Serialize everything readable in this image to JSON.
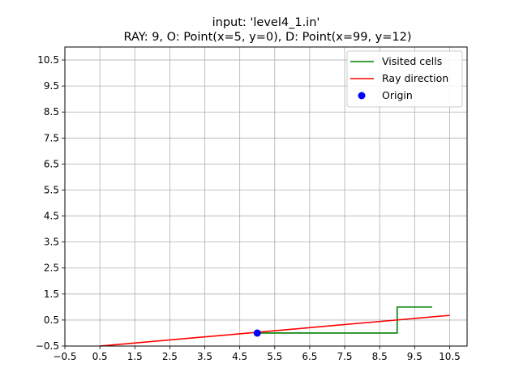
{
  "chart_data": {
    "type": "line",
    "title_lines": [
      "input: 'level4_1.in'",
      "RAY: 9, O: Point(x=5, y=0), D: Point(x=99, y=12)"
    ],
    "xlabel": "",
    "ylabel": "",
    "xlim": [
      -0.5,
      11.0
    ],
    "ylim": [
      -0.5,
      11.0
    ],
    "xticks": [
      -0.5,
      0.5,
      1.5,
      2.5,
      3.5,
      4.5,
      5.5,
      6.5,
      7.5,
      8.5,
      9.5,
      10.5
    ],
    "yticks": [
      -0.5,
      0.5,
      1.5,
      2.5,
      3.5,
      4.5,
      5.5,
      6.5,
      7.5,
      8.5,
      9.5,
      10.5
    ],
    "xtick_labels": [
      "−0.5",
      "0.5",
      "1.5",
      "2.5",
      "3.5",
      "4.5",
      "5.5",
      "6.5",
      "7.5",
      "8.5",
      "9.5",
      "10.5"
    ],
    "ytick_labels": [
      "−0.5",
      "0.5",
      "1.5",
      "2.5",
      "3.5",
      "4.5",
      "5.5",
      "6.5",
      "7.5",
      "8.5",
      "9.5",
      "10.5"
    ],
    "grid": true,
    "legend_position": "top-right",
    "series": [
      {
        "name": "Visited cells",
        "kind": "line",
        "color": "#008000",
        "x": [
          5,
          9,
          9,
          10
        ],
        "y": [
          0,
          0,
          1,
          1
        ]
      },
      {
        "name": "Ray direction",
        "kind": "line",
        "color": "#ff0000",
        "x": [
          0.5,
          10.5
        ],
        "y": [
          -0.5,
          0.68
        ]
      },
      {
        "name": "Origin",
        "kind": "scatter",
        "color": "#0000ff",
        "x": [
          5
        ],
        "y": [
          0
        ]
      }
    ]
  }
}
